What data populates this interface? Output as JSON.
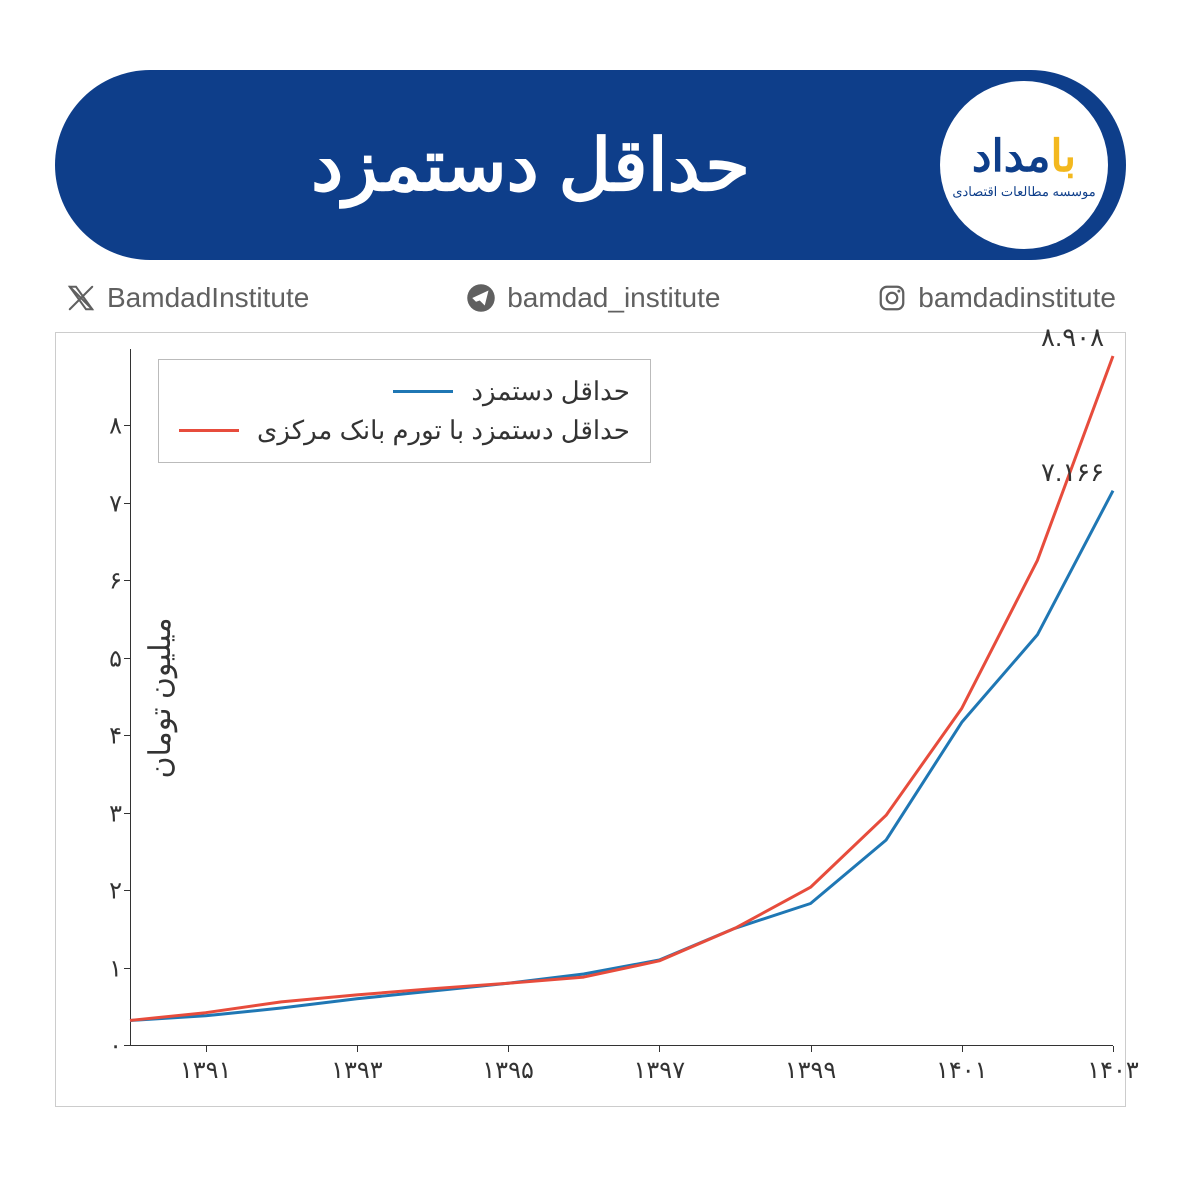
{
  "header": {
    "title": "حداقل دستمزد",
    "pill_bg": "#0e3e8a",
    "logo": {
      "text_main_yellow": "با",
      "text_main_navy": "مداد",
      "yellow": "#f3b81e",
      "navy": "#0e3e8a",
      "subtitle": "موسسه مطالعات اقتصادی"
    }
  },
  "socials": {
    "x": {
      "label": "BamdadInstitute"
    },
    "telegram": {
      "label": "bamdad_institute"
    },
    "instagram": {
      "label": "bamdadinstitute"
    },
    "icon_color": "#606060"
  },
  "chart": {
    "type": "line",
    "border_color": "#cccccc",
    "background_color": "#ffffff",
    "y_axis_label": "میلیون تومان",
    "ylim": [
      0,
      9
    ],
    "y_ticks": [
      0,
      1,
      2,
      3,
      4,
      5,
      6,
      7,
      8
    ],
    "y_tick_labels": [
      "۰",
      "۱",
      "۲",
      "۳",
      "۴",
      "۵",
      "۶",
      "۷",
      "۸"
    ],
    "xlim": [
      1390,
      1403
    ],
    "x_ticks": [
      1391,
      1393,
      1395,
      1397,
      1399,
      1401,
      1403
    ],
    "x_tick_labels": [
      "۱۳۹۱",
      "۱۳۹۳",
      "۱۳۹۵",
      "۱۳۹۷",
      "۱۳۹۹",
      "۱۴۰۱",
      "۱۴۰۳"
    ],
    "series": [
      {
        "name": "حداقل دستمزد",
        "color": "#1f77b4",
        "line_width": 3,
        "x": [
          1390,
          1391,
          1392,
          1393,
          1394,
          1395,
          1396,
          1397,
          1398,
          1399,
          1400,
          1401,
          1402,
          1403
        ],
        "y": [
          0.33,
          0.39,
          0.49,
          0.61,
          0.71,
          0.81,
          0.93,
          1.11,
          1.52,
          1.84,
          2.66,
          4.18,
          5.31,
          7.17
        ]
      },
      {
        "name": "حداقل دستمزد با تورم بانک مرکزی",
        "color": "#e74c3c",
        "line_width": 3,
        "x": [
          1390,
          1391,
          1392,
          1393,
          1394,
          1395,
          1396,
          1397,
          1398,
          1399,
          1400,
          1401,
          1402,
          1403
        ],
        "y": [
          0.33,
          0.43,
          0.57,
          0.66,
          0.74,
          0.81,
          0.89,
          1.1,
          1.52,
          2.05,
          2.98,
          4.36,
          6.27,
          8.91
        ]
      }
    ],
    "end_labels": [
      {
        "text": "۸.۹۰۸",
        "y": 8.91,
        "color": "#333333"
      },
      {
        "text": "۷.۱۶۶",
        "y": 7.17,
        "color": "#333333"
      }
    ],
    "legend": {
      "border_color": "#bbbbbb",
      "items": [
        {
          "label": "حداقل دستمزد",
          "color": "#1f77b4"
        },
        {
          "label": "حداقل دستمزد با تورم بانک مرکزی",
          "color": "#e74c3c"
        }
      ]
    },
    "axis_color": "#333333",
    "tick_fontsize": 24,
    "label_fontsize": 30
  }
}
